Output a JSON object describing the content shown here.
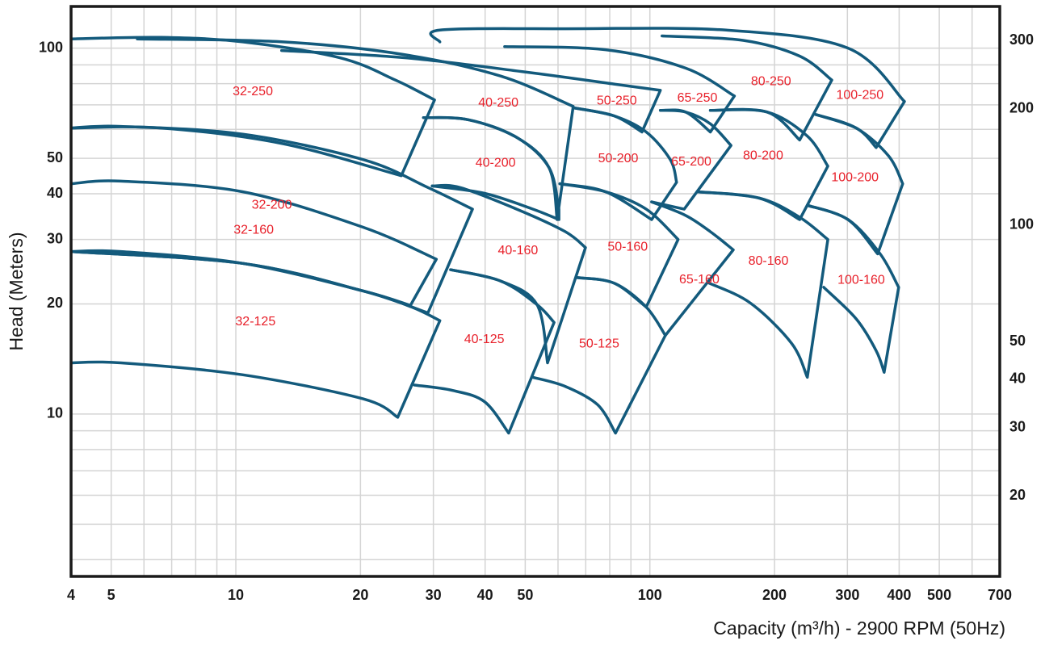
{
  "chart_data": {
    "type": "curve",
    "x_label": "Capacity (m³/h) - 2900 RPM (50Hz)",
    "y_label": "Head (Meters)",
    "xscale": "log",
    "yscale": "log",
    "xlim": [
      4,
      700
    ],
    "ylim": [
      3.6,
      130
    ],
    "y2lim": [
      12.4,
      367
    ],
    "xticks": [
      4,
      5,
      10,
      20,
      30,
      40,
      50,
      100,
      200,
      300,
      400,
      500,
      700
    ],
    "yticks": [
      10,
      20,
      30,
      40,
      50,
      100
    ],
    "y2ticks": [
      20,
      30,
      40,
      50,
      100,
      200,
      300
    ],
    "xgrid": [
      4,
      5,
      6,
      7,
      8,
      9,
      10,
      20,
      30,
      40,
      50,
      60,
      70,
      80,
      90,
      100,
      200,
      300,
      400,
      500,
      600,
      700
    ],
    "ygrid": [
      4,
      5,
      6,
      7,
      8,
      9,
      10,
      20,
      30,
      40,
      50,
      60,
      70,
      80,
      90,
      100
    ],
    "grid": true,
    "color": "#135a7c",
    "label_color": "#e8202a",
    "series": [
      {
        "name": "32-250",
        "x": [
          4,
          6.6,
          10.4,
          17.8,
          24.3,
          30.2
        ],
        "values": [
          106,
          107,
          104,
          94.2,
          81.8,
          72.2
        ],
        "min_x": [
          4,
          6.6,
          13,
          25.1
        ],
        "min": [
          60.5,
          60.5,
          54.8,
          44.8
        ]
      },
      {
        "name": "32-200",
        "x": [
          4,
          5.28,
          10.4,
          20.3,
          29.1,
          37.3
        ],
        "values": [
          60.5,
          61.1,
          58.2,
          49.6,
          41.6,
          36.3
        ],
        "min_x": [
          4,
          10.4,
          20.3,
          29.1
        ],
        "min": [
          27.8,
          25.8,
          21.7,
          18.9
        ]
      },
      {
        "name": "32-160",
        "x": [
          4,
          5.28,
          10.4,
          20.3,
          30.5
        ],
        "values": [
          42.6,
          43.3,
          40.5,
          32.4,
          26.5
        ],
        "min_x": [
          4,
          10.4,
          20.3,
          26.4
        ],
        "min": [
          27.8,
          25.8,
          21.7,
          19.8
        ]
      },
      {
        "name": "32-125",
        "x": [
          4,
          5.28,
          10.4,
          20.3,
          26.6,
          31.1
        ],
        "values": [
          27.8,
          27.8,
          25.8,
          21.7,
          19.6,
          18.0
        ],
        "min_x": [
          4,
          5.28,
          10.4,
          20.3,
          24.6
        ],
        "min": [
          13.8,
          13.8,
          12.8,
          11.0,
          9.8
        ]
      },
      {
        "name": "40-250",
        "x": [
          5.78,
          13,
          25.4,
          43.6,
          65.3
        ],
        "values": [
          106,
          104,
          96.1,
          83.9,
          69.3
        ],
        "min_x": [
          28.4,
          36.5,
          47.7,
          57.1,
          59.7
        ],
        "min": [
          64.6,
          63.7,
          57.0,
          47.1,
          34.0
        ]
      },
      {
        "name": "40-200",
        "x": [
          28.4,
          36.5,
          47.7,
          57.1,
          60.3
        ],
        "values": [
          64.6,
          63.7,
          57.0,
          47.1,
          36.3
        ],
        "min_x": [
          29.8,
          39.9,
          52.2,
          60.3
        ],
        "min": [
          42.0,
          40.1,
          36.3,
          34.0
        ]
      },
      {
        "name": "40-160",
        "x": [
          29.8,
          34.8,
          47.7,
          62.5,
          69.9
        ],
        "values": [
          42.0,
          41.6,
          36.3,
          31.5,
          28.5
        ],
        "min_x": [
          33.0,
          43.6,
          53.4,
          56.6
        ],
        "min": [
          24.8,
          23.1,
          19.9,
          13.8
        ]
      },
      {
        "name": "40-125",
        "x": [
          33.0,
          43.6,
          53.4,
          58.7
        ],
        "values": [
          24.8,
          23.1,
          19.9,
          17.8
        ],
        "min_x": [
          27.0,
          33.4,
          39.9,
          45.6
        ],
        "min": [
          12.0,
          11.6,
          10.8,
          8.87
        ]
      },
      {
        "name": "50-250",
        "x": [
          12.9,
          25.4,
          49.9,
          81.9,
          106
        ],
        "values": [
          98.5,
          94.2,
          86.1,
          79.8,
          76.7
        ],
        "min_x": [
          65.3,
          81.9,
          95.7
        ],
        "min": [
          68.7,
          65.3,
          59.0
        ]
      },
      {
        "name": "50-200",
        "x": [
          65.3,
          81.9,
          98,
          112,
          116
        ],
        "values": [
          68.7,
          65.3,
          59.0,
          49.6,
          43.0
        ],
        "min_x": [
          60.6,
          78.2,
          101
        ],
        "min": [
          42.6,
          40.5,
          34.0
        ]
      },
      {
        "name": "50-160",
        "x": [
          60.6,
          78.2,
          98,
          117
        ],
        "values": [
          42.6,
          40.5,
          36.3,
          30.0
        ],
        "min_x": [
          66.8,
          81.9,
          98
        ],
        "min": [
          23.6,
          22.8,
          19.6
        ]
      },
      {
        "name": "50-125",
        "x": [
          66.8,
          81.9,
          98,
          109
        ],
        "values": [
          23.6,
          22.8,
          19.6,
          16.4
        ],
        "min_x": [
          52.2,
          62.5,
          74.8,
          82.6
        ],
        "min": [
          12.6,
          11.9,
          10.6,
          8.87
        ]
      },
      {
        "name": "65-250",
        "x": [
          44.6,
          78.2,
          122,
          160
        ],
        "values": [
          101,
          99.0,
          88.2,
          74.0
        ],
        "min_x": [
          106,
          122,
          140
        ],
        "min": [
          67.6,
          66.9,
          59.0
        ]
      },
      {
        "name": "65-200",
        "x": [
          106,
          122,
          140,
          157
        ],
        "values": [
          67.6,
          66.9,
          62.1,
          54.2
        ],
        "min_x": [
          101,
          121
        ],
        "min": [
          38.0,
          36.3
        ]
      },
      {
        "name": "65-160",
        "x": [
          101,
          122,
          140,
          159
        ],
        "values": [
          38.0,
          34.9,
          31.5,
          28.1
        ],
        "min_x": [
          109
        ],
        "min": [
          16.4
        ]
      },
      {
        "name": "80-250",
        "x": [
          107,
          168,
          230,
          275
        ],
        "values": [
          108,
          105,
          95.1,
          81.8
        ],
        "min_x": [
          140,
          192,
          230
        ],
        "min": [
          67.6,
          66.9,
          56.1
        ]
      },
      {
        "name": "80-200",
        "x": [
          140,
          192,
          240,
          269
        ],
        "values": [
          67.6,
          66.9,
          57.5,
          47.6
        ],
        "min_x": [
          131,
          184,
          230
        ],
        "min": [
          40.5,
          38.9,
          34.0
        ]
      },
      {
        "name": "80-160",
        "x": [
          131,
          184,
          230,
          269
        ],
        "values": [
          40.5,
          38.9,
          34.5,
          30.0
        ],
        "min_x": [
          139,
          175,
          220,
          240
        ],
        "min": [
          22.8,
          20.1,
          15.6,
          12.6
        ]
      },
      {
        "name": "100-250",
        "x": [
          31.1,
          31.1,
          62.5,
          153,
          301,
          412
        ],
        "values": [
          104,
          112,
          113,
          112,
          100,
          71.5
        ],
        "min_x": [
          251,
          315,
          352
        ],
        "min": [
          65.9,
          60.5,
          53.5
        ]
      },
      {
        "name": "100-200",
        "x": [
          251,
          315,
          377,
          408
        ],
        "values": [
          65.9,
          60.5,
          50.8,
          42.6
        ],
        "min_x": [
          240,
          301,
          355
        ],
        "min": [
          37.2,
          34.0,
          27.4
        ]
      },
      {
        "name": "100-160",
        "x": [
          240,
          301,
          360,
          399
        ],
        "values": [
          37.2,
          34.0,
          27.4,
          22.2
        ],
        "min_x": [
          263,
          315,
          352,
          368
        ],
        "min": [
          22.2,
          18.2,
          14.9,
          13.0
        ]
      }
    ]
  }
}
